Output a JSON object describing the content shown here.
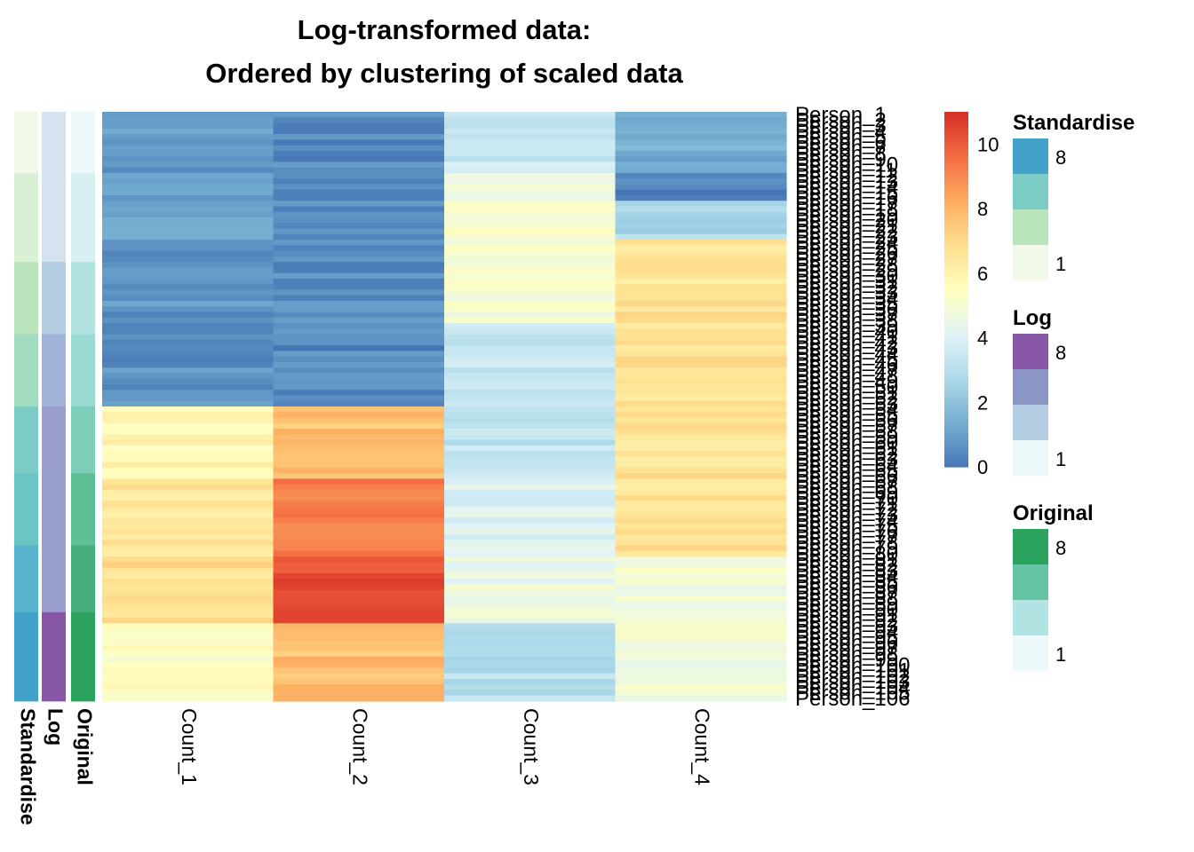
{
  "chart_data": {
    "type": "heatmap",
    "title_lines": [
      "Log-transformed data:",
      "Ordered by clustering of scaled data"
    ],
    "columns": [
      "Count_1",
      "Count_2",
      "Count_3",
      "Count_4"
    ],
    "row_label_prefix": "Person_",
    "row_labels_visible": [
      "Person_ 1",
      "Person_ 106"
    ],
    "n_rows": 106,
    "color_scale": {
      "min": 0,
      "max": 11,
      "ticks": [
        0,
        2,
        4,
        6,
        8,
        10
      ],
      "palette": [
        "#4575b4",
        "#74add1",
        "#abd9e9",
        "#e0f3f8",
        "#ffffbf",
        "#fee090",
        "#fdae61",
        "#f46d43",
        "#d73027"
      ]
    },
    "row_blocks": [
      {
        "rows": 11,
        "values": [
          0.9,
          0.5,
          3.5,
          1.4
        ]
      },
      {
        "rows": 5,
        "values": [
          0.9,
          0.6,
          4.6,
          0.3
        ]
      },
      {
        "rows": 7,
        "values": [
          1.0,
          0.7,
          5.3,
          2.8
        ]
      },
      {
        "rows": 15,
        "values": [
          0.8,
          0.6,
          5.0,
          6.7
        ]
      },
      {
        "rows": 15,
        "values": [
          0.7,
          0.5,
          3.4,
          6.7
        ]
      },
      {
        "rows": 13,
        "values": [
          5.8,
          7.8,
          3.3,
          6.7
        ]
      },
      {
        "rows": 14,
        "values": [
          6.5,
          9.4,
          4.1,
          6.7
        ]
      },
      {
        "rows": 12,
        "values": [
          6.9,
          10.3,
          4.6,
          5.0
        ]
      },
      {
        "rows": 14,
        "values": [
          5.3,
          7.8,
          3.1,
          4.9
        ]
      }
    ],
    "annotation_columns": [
      "Standardise",
      "Log",
      "Original"
    ],
    "annotations": {
      "Standardise": [
        {
          "rows": 11,
          "level": 1
        },
        {
          "rows": 16,
          "level": 2
        },
        {
          "rows": 13,
          "level": 3
        },
        {
          "rows": 13,
          "level": 4
        },
        {
          "rows": 12,
          "level": 5
        },
        {
          "rows": 13,
          "level": 6
        },
        {
          "rows": 12,
          "level": 7
        },
        {
          "rows": 16,
          "level": 8
        }
      ],
      "Log": [
        {
          "rows": 27,
          "level": 2
        },
        {
          "rows": 13,
          "level": 3
        },
        {
          "rows": 13,
          "level": 4
        },
        {
          "rows": 37,
          "level": 6
        },
        {
          "rows": 16,
          "level": 8
        }
      ],
      "Original": [
        {
          "rows": 11,
          "level": 1
        },
        {
          "rows": 16,
          "level": 2
        },
        {
          "rows": 13,
          "level": 3
        },
        {
          "rows": 13,
          "level": 4
        },
        {
          "rows": 12,
          "level": 5
        },
        {
          "rows": 13,
          "level": 6
        },
        {
          "rows": 12,
          "level": 7
        },
        {
          "rows": 16,
          "level": 8
        }
      ]
    },
    "legends": [
      {
        "title": "Standardise",
        "labels": [
          "8",
          "1"
        ],
        "colors": [
          "#43a2ca",
          "#7bccc4",
          "#bae4bc",
          "#f0f9e8"
        ],
        "palette8": [
          "#f0f9e8",
          "#d8f0d3",
          "#bae4bc",
          "#a2dcc0",
          "#7bccc4",
          "#6ac6c4",
          "#56b3cb",
          "#43a2ca"
        ]
      },
      {
        "title": "Log",
        "labels": [
          "8",
          "1"
        ],
        "colors": [
          "#8856a7",
          "#8c96c6",
          "#b3cde3",
          "#edf8fb"
        ],
        "palette8": [
          "#edf8fb",
          "#d4e3ef",
          "#b3cde3",
          "#9fb3d8",
          "#8c96c6",
          "#9a9ece",
          "#8b6fb5",
          "#8856a7"
        ]
      },
      {
        "title": "Original",
        "labels": [
          "8",
          "1"
        ],
        "colors": [
          "#2ca25f",
          "#66c2a4",
          "#b2e2e2",
          "#edf8fb"
        ],
        "palette8": [
          "#edf8fb",
          "#d7eff1",
          "#b2e2e2",
          "#99dbd2",
          "#7dceb8",
          "#5ebf95",
          "#45b07c",
          "#2ca25f"
        ]
      }
    ]
  }
}
